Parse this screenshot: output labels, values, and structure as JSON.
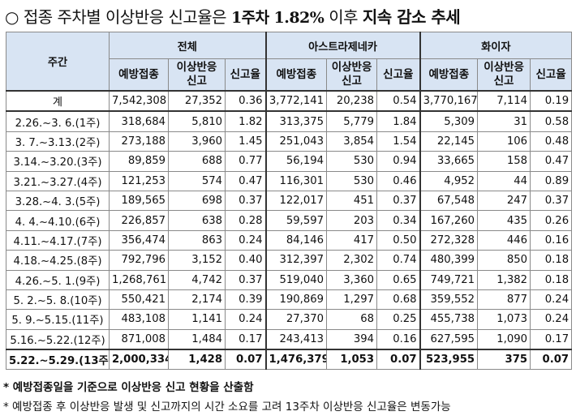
{
  "title": {
    "circle": "○",
    "part1": "접종 주차별 이상반응 신고율은",
    "week": "1주차",
    "rate": "1.82%",
    "part2": "이후",
    "part3": "지속 감소 추세"
  },
  "table": {
    "period_header": "주간",
    "groups": [
      "전체",
      "아스트라제네카",
      "화이자"
    ],
    "subheaders": [
      "예방접종",
      "이상반응\n신고",
      "신고율"
    ],
    "rows": [
      [
        "계",
        "7,542,308",
        "27,352",
        "0.36",
        "3,772,141",
        "20,238",
        "0.54",
        "3,770,167",
        "7,114",
        "0.19"
      ],
      [
        "2.26.~3. 6.(1주)",
        "318,684",
        "5,810",
        "1.82",
        "313,375",
        "5,779",
        "1.84",
        "5,309",
        "31",
        "0.58"
      ],
      [
        "3. 7.~3.13.(2주)",
        "273,188",
        "3,960",
        "1.45",
        "251,043",
        "3,854",
        "1.54",
        "22,145",
        "106",
        "0.48"
      ],
      [
        "3.14.~3.20.(3주)",
        "89,859",
        "688",
        "0.77",
        "56,194",
        "530",
        "0.94",
        "33,665",
        "158",
        "0.47"
      ],
      [
        "3.21.~3.27.(4주)",
        "121,253",
        "574",
        "0.47",
        "116,301",
        "530",
        "0.46",
        "4,952",
        "44",
        "0.89"
      ],
      [
        "3.28.~4. 3.(5주)",
        "189,565",
        "698",
        "0.37",
        "122,017",
        "451",
        "0.37",
        "67,548",
        "247",
        "0.37"
      ],
      [
        "4. 4.~4.10.(6주)",
        "226,857",
        "638",
        "0.28",
        "59,597",
        "203",
        "0.34",
        "167,260",
        "435",
        "0.26"
      ],
      [
        "4.11.~4.17.(7주)",
        "356,474",
        "863",
        "0.24",
        "84,146",
        "417",
        "0.50",
        "272,328",
        "446",
        "0.16"
      ],
      [
        "4.18.~4.25.(8주)",
        "792,796",
        "3,152",
        "0.40",
        "312,397",
        "2,302",
        "0.74",
        "480,399",
        "850",
        "0.18"
      ],
      [
        "4.26.~5. 1.(9주)",
        "1,268,761",
        "4,742",
        "0.37",
        "519,040",
        "3,360",
        "0.65",
        "749,721",
        "1,382",
        "0.18"
      ],
      [
        "5. 2.~5. 8.(10주)",
        "550,421",
        "2,174",
        "0.39",
        "190,869",
        "1,297",
        "0.68",
        "359,552",
        "877",
        "0.24"
      ],
      [
        "5. 9.~5.15.(11주)",
        "483,108",
        "1,141",
        "0.24",
        "27,370",
        "68",
        "0.25",
        "455,738",
        "1,073",
        "0.24"
      ],
      [
        "5.16.~5.22.(12주)",
        "871,008",
        "1,484",
        "0.17",
        "243,413",
        "394",
        "0.16",
        "627,595",
        "1,090",
        "0.17"
      ],
      [
        "5.22.~5.29.(13주)",
        "2,000,334",
        "1,428",
        "0.07",
        "1,476,379",
        "1,053",
        "0.07",
        "523,955",
        "375",
        "0.07"
      ]
    ]
  },
  "notes": [
    "* 예방접종일을 기준으로 이상반응 신고 현황을 산출함",
    "* 예방접종 후 이상반응 발생 및 신고까지의 시간 소요를 고려 13주차 이상반응 신고율은 변동가능"
  ]
}
